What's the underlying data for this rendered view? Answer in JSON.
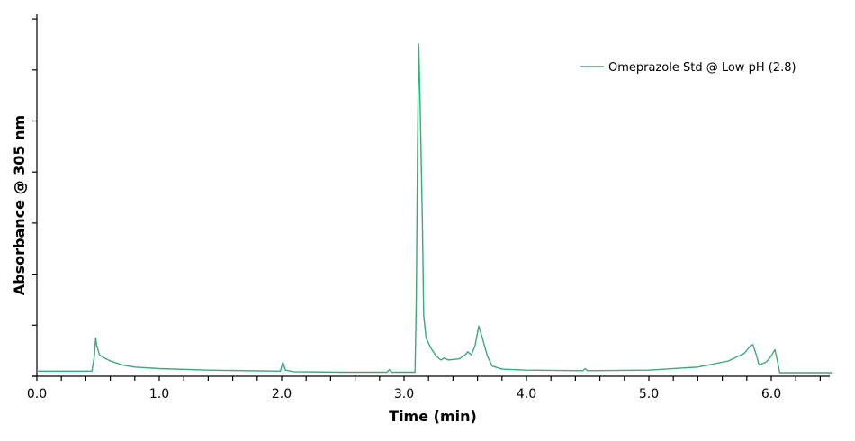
{
  "chart_data": {
    "type": "line",
    "title": "",
    "xlabel": "Time (min)",
    "ylabel": "Absorbance @ 305 nm",
    "xlim": [
      0.0,
      6.5
    ],
    "ylim": [
      0,
      7
    ],
    "x_ticks": [
      "0.0",
      "1.0",
      "2.0",
      "3.0",
      "4.0",
      "5.0",
      "6.0"
    ],
    "x_minor_step": 0.2,
    "y_ticks_count": 8,
    "y_tick_labels_shown": false,
    "grid": false,
    "legend_position": "top-right",
    "series": [
      {
        "name": "Omeprazole Std @ Low pH (2.8)",
        "color": "#3aaa78",
        "points": [
          [
            0.0,
            0.1
          ],
          [
            0.45,
            0.1
          ],
          [
            0.47,
            0.4
          ],
          [
            0.48,
            0.75
          ],
          [
            0.49,
            0.6
          ],
          [
            0.51,
            0.42
          ],
          [
            0.55,
            0.36
          ],
          [
            0.6,
            0.3
          ],
          [
            0.7,
            0.22
          ],
          [
            0.8,
            0.18
          ],
          [
            1.0,
            0.15
          ],
          [
            1.4,
            0.12
          ],
          [
            1.99,
            0.1
          ],
          [
            2.01,
            0.28
          ],
          [
            2.03,
            0.12
          ],
          [
            2.1,
            0.09
          ],
          [
            2.5,
            0.08
          ],
          [
            2.86,
            0.08
          ],
          [
            2.88,
            0.13
          ],
          [
            2.9,
            0.08
          ],
          [
            3.09,
            0.08
          ],
          [
            3.1,
            1.5
          ],
          [
            3.11,
            4.5
          ],
          [
            3.12,
            6.5
          ],
          [
            3.13,
            5.5
          ],
          [
            3.15,
            3.0
          ],
          [
            3.16,
            1.2
          ],
          [
            3.18,
            0.75
          ],
          [
            3.22,
            0.55
          ],
          [
            3.26,
            0.4
          ],
          [
            3.3,
            0.32
          ],
          [
            3.33,
            0.36
          ],
          [
            3.36,
            0.32
          ],
          [
            3.45,
            0.34
          ],
          [
            3.5,
            0.42
          ],
          [
            3.52,
            0.48
          ],
          [
            3.55,
            0.42
          ],
          [
            3.58,
            0.6
          ],
          [
            3.61,
            0.98
          ],
          [
            3.64,
            0.75
          ],
          [
            3.68,
            0.4
          ],
          [
            3.72,
            0.2
          ],
          [
            3.8,
            0.14
          ],
          [
            4.0,
            0.12
          ],
          [
            4.46,
            0.11
          ],
          [
            4.48,
            0.15
          ],
          [
            4.5,
            0.11
          ],
          [
            5.0,
            0.12
          ],
          [
            5.4,
            0.18
          ],
          [
            5.65,
            0.3
          ],
          [
            5.78,
            0.45
          ],
          [
            5.83,
            0.6
          ],
          [
            5.85,
            0.62
          ],
          [
            5.88,
            0.4
          ],
          [
            5.9,
            0.22
          ],
          [
            5.96,
            0.28
          ],
          [
            6.0,
            0.4
          ],
          [
            6.03,
            0.52
          ],
          [
            6.05,
            0.3
          ],
          [
            6.07,
            0.07
          ],
          [
            6.5,
            0.07
          ]
        ]
      }
    ],
    "peaks": [
      {
        "time": 0.48,
        "height": 0.75
      },
      {
        "time": 2.01,
        "height": 0.28
      },
      {
        "time": 3.12,
        "height": 6.5,
        "label": "Omeprazole"
      },
      {
        "time": 3.52,
        "height": 0.48
      },
      {
        "time": 3.61,
        "height": 0.98
      },
      {
        "time": 5.85,
        "height": 0.62
      },
      {
        "time": 6.03,
        "height": 0.52
      }
    ]
  },
  "legend": {
    "label": "Omeprazole Std @ Low pH (2.8)"
  },
  "axes": {
    "x_title": "Time (min)",
    "y_title": "Absorbance @ 305 nm"
  }
}
